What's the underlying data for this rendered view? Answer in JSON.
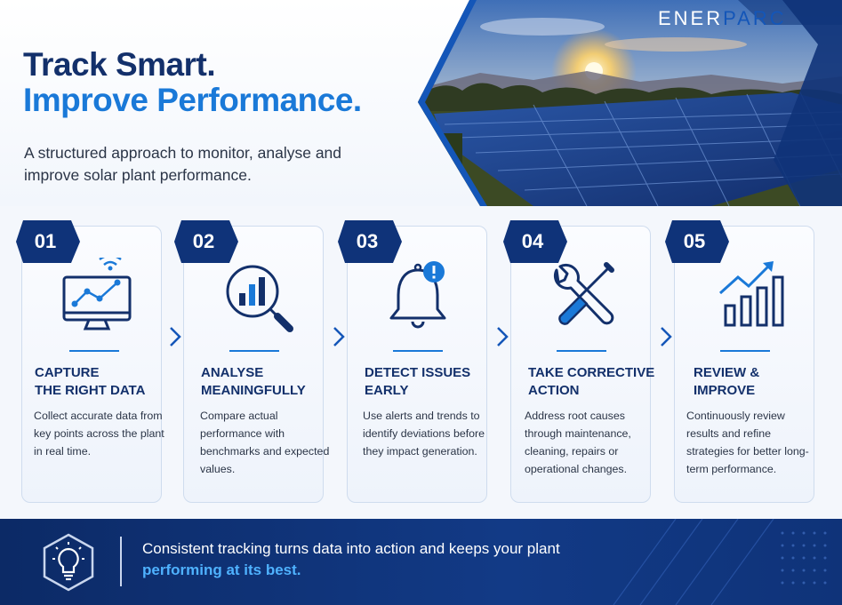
{
  "brand": {
    "part1": "ENER",
    "part2": "PARC"
  },
  "hero": {
    "title_line1": "Track Smart.",
    "title_line2": "Improve Performance.",
    "subtitle": "A structured approach to monitor, analyse and improve solar plant performance."
  },
  "colors": {
    "navy": "#13306b",
    "accent": "#1a79d8",
    "footer_bg": "#0c2a66",
    "highlight": "#4fb2ff"
  },
  "steps": [
    {
      "number": "01",
      "icon": "monitor-chart-icon",
      "title": "CAPTURE\nTHE RIGHT DATA",
      "description": "Collect accurate data from key points across the plant in real time."
    },
    {
      "number": "02",
      "icon": "magnifier-chart-icon",
      "title": "ANALYSE\nMEANINGFULLY",
      "description": "Compare actual performance with benchmarks and expected values."
    },
    {
      "number": "03",
      "icon": "alert-bell-icon",
      "title": "DETECT ISSUES\nEARLY",
      "description": "Use alerts and trends to identify deviations before they impact generation."
    },
    {
      "number": "04",
      "icon": "wrench-screwdriver-icon",
      "title": "TAKE CORRECTIVE\nACTION",
      "description": "Address root causes through maintenance, cleaning, repairs or operational changes."
    },
    {
      "number": "05",
      "icon": "growth-chart-icon",
      "title": "REVIEW &\nIMPROVE",
      "description": "Continuously review results and refine strategies for better long-term performance."
    }
  ],
  "footer": {
    "icon": "lightbulb-icon",
    "text_plain": "Consistent tracking turns data into action and keeps your plant ",
    "text_highlight": "performing at its best."
  }
}
